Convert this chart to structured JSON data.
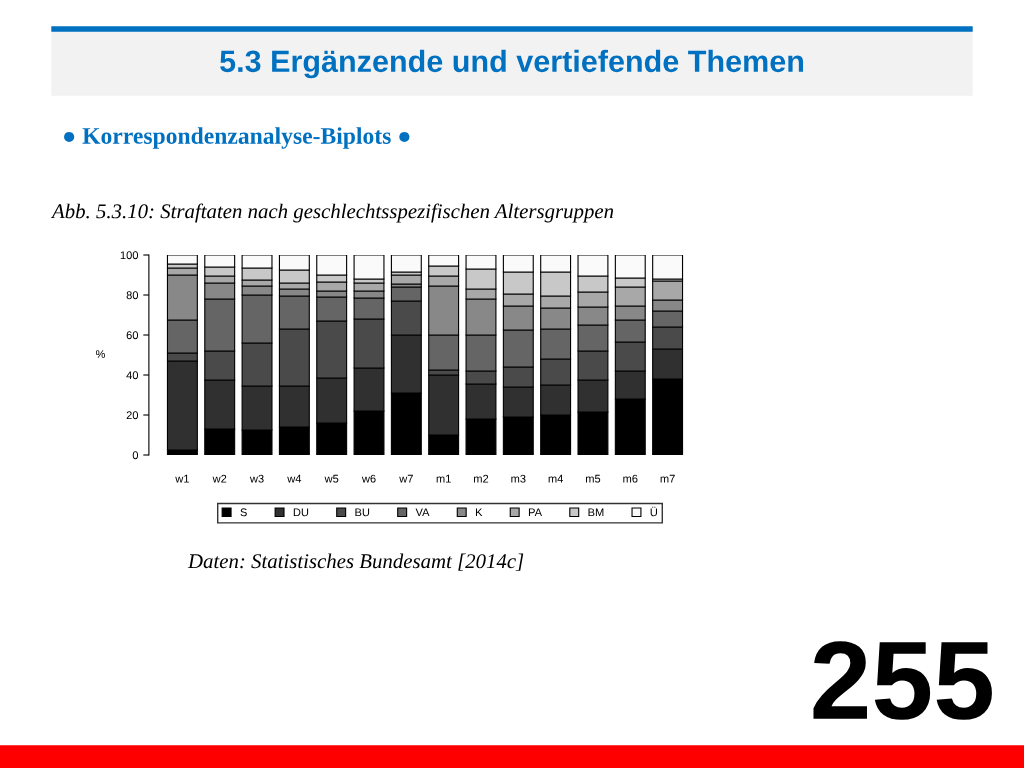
{
  "chart_data": {
    "type": "bar",
    "stacked": true,
    "title": "5.3 Ergänzende und vertiefende Themen",
    "subtitle": "● Korrespondenzanalyse-Biplots ●",
    "annotations": [
      "Abb. 5.3.10: Straftaten nach geschlechtsspezifischen Altersgruppen",
      "Daten: Statistisches Bundesamt [2014c]",
      "255"
    ],
    "ylabel": "%",
    "categories": [
      "w1",
      "w2",
      "w3",
      "w4",
      "w5",
      "w6",
      "w7",
      "m1",
      "m2",
      "m3",
      "m4",
      "m5",
      "m6",
      "m7"
    ],
    "series": [
      {
        "name": "S",
        "color": "#000000",
        "values": [
          2.5,
          13,
          12.5,
          14,
          16,
          22,
          31,
          10,
          18,
          19,
          20,
          21.5,
          28,
          38
        ]
      },
      {
        "name": "DU",
        "color": "#303030",
        "values": [
          44.5,
          24.5,
          22,
          20.5,
          22.5,
          21.5,
          29,
          30,
          17.5,
          15,
          15,
          16,
          14,
          15
        ]
      },
      {
        "name": "BU",
        "color": "#4a4a4a",
        "values": [
          4,
          14.5,
          21.5,
          28.5,
          28.5,
          24.5,
          17,
          2.5,
          6.5,
          10,
          13,
          14.5,
          14.5,
          11
        ]
      },
      {
        "name": "VA",
        "color": "#656565",
        "values": [
          16.5,
          26,
          24,
          16.5,
          12,
          10.5,
          7,
          17.5,
          18,
          18.5,
          15,
          13,
          11,
          8
        ]
      },
      {
        "name": "K",
        "color": "#888888",
        "values": [
          22.5,
          8,
          4.5,
          3.5,
          3,
          3.5,
          1.5,
          24.5,
          18,
          12,
          10.5,
          9,
          7,
          5.5
        ]
      },
      {
        "name": "PA",
        "color": "#a8a8a8",
        "values": [
          3.5,
          3.5,
          3,
          3,
          4.5,
          4,
          4.5,
          5,
          5,
          6,
          6,
          7.5,
          9.5,
          9.5
        ]
      },
      {
        "name": "BM",
        "color": "#c8c8c8",
        "values": [
          2,
          4.5,
          6,
          6.5,
          3.5,
          2,
          1.5,
          5,
          10,
          11,
          12,
          8,
          4.5,
          1
        ]
      },
      {
        "name": "Ü",
        "color": "#fafafa",
        "values": [
          4.5,
          6,
          6.5,
          7.5,
          10,
          12,
          8.5,
          5.5,
          7,
          8.5,
          8.5,
          10.5,
          11.5,
          12
        ]
      }
    ],
    "ylim": [
      0,
      100
    ],
    "yticks": [
      0,
      20,
      40,
      60,
      80,
      100
    ],
    "grid": false,
    "legend": "bottom"
  }
}
